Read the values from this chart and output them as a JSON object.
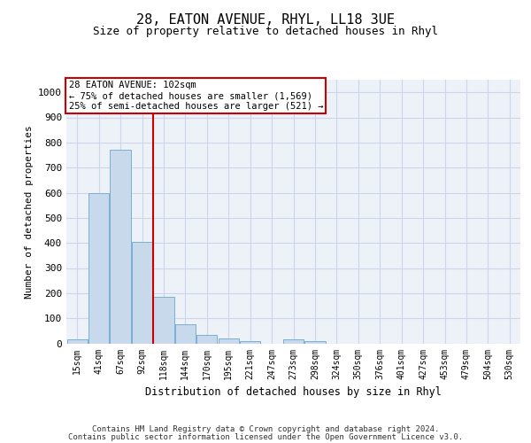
{
  "title1": "28, EATON AVENUE, RHYL, LL18 3UE",
  "title2": "Size of property relative to detached houses in Rhyl",
  "xlabel": "Distribution of detached houses by size in Rhyl",
  "ylabel": "Number of detached properties",
  "footer1": "Contains HM Land Registry data © Crown copyright and database right 2024.",
  "footer2": "Contains public sector information licensed under the Open Government Licence v3.0.",
  "bin_labels": [
    "15sqm",
    "41sqm",
    "67sqm",
    "92sqm",
    "118sqm",
    "144sqm",
    "170sqm",
    "195sqm",
    "221sqm",
    "247sqm",
    "273sqm",
    "298sqm",
    "324sqm",
    "350sqm",
    "376sqm",
    "401sqm",
    "427sqm",
    "453sqm",
    "479sqm",
    "504sqm",
    "530sqm"
  ],
  "bar_values": [
    15,
    600,
    770,
    405,
    185,
    75,
    35,
    20,
    10,
    0,
    15,
    10,
    0,
    0,
    0,
    0,
    0,
    0,
    0,
    0,
    0
  ],
  "bar_color": "#c9d9ec",
  "bar_edgecolor": "#7bafd4",
  "ref_line_x": 3.5,
  "reference_line_color": "#cc0000",
  "annotation_text": "28 EATON AVENUE: 102sqm\n← 75% of detached houses are smaller (1,569)\n25% of semi-detached houses are larger (521) →",
  "annotation_box_facecolor": "#ffffff",
  "annotation_box_edgecolor": "#cc0000",
  "ylim": [
    0,
    1050
  ],
  "yticks": [
    0,
    100,
    200,
    300,
    400,
    500,
    600,
    700,
    800,
    900,
    1000
  ],
  "grid_color": "#ccd6e8",
  "plot_bgcolor": "#edf1f8"
}
